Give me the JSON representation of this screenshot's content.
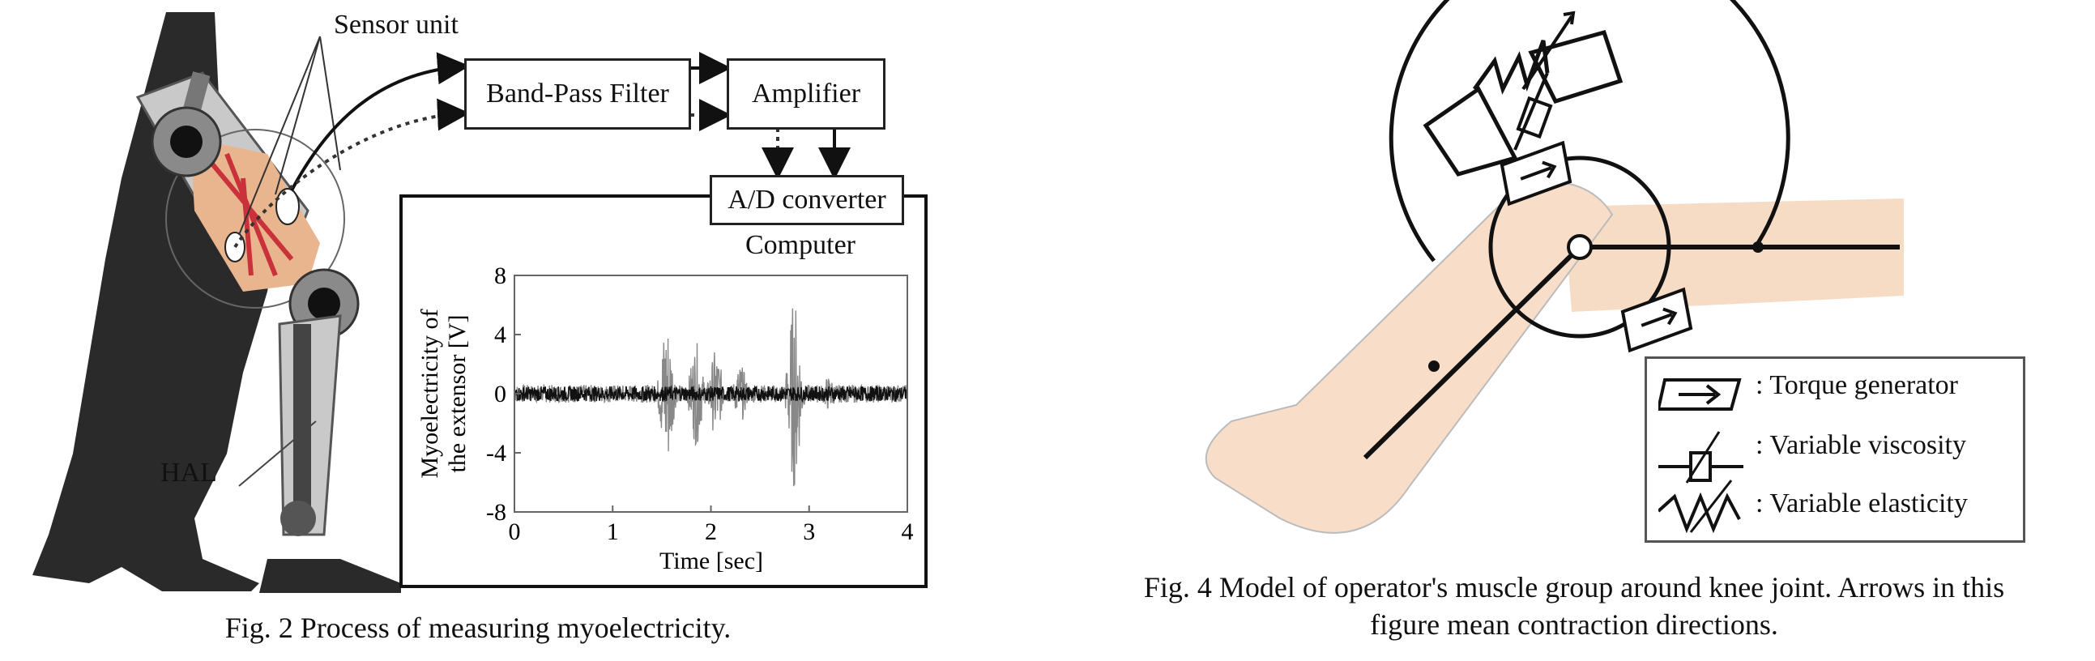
{
  "fig2": {
    "labels": {
      "sensor_unit": "Sensor unit",
      "hal": "HAL",
      "band_pass": "Band-Pass Filter",
      "amplifier": "Amplifier",
      "adc": "A/D converter",
      "computer": "Computer"
    },
    "caption": "Fig. 2 Process of measuring myoelectricity."
  },
  "fig4": {
    "legend": {
      "torque": ": Torque generator",
      "viscosity": ": Variable viscosity",
      "elasticity": ": Variable elasticity"
    },
    "caption_line1": "Fig. 4 Model of operator's muscle group around knee joint. Arrows in this",
    "caption_line2": "figure mean contraction directions."
  },
  "chart_data": {
    "type": "line",
    "xlabel": "Time [sec]",
    "ylabel_line1": "Myoelectricity of",
    "ylabel_line2": "the extensor [V]",
    "xlim": [
      0,
      4
    ],
    "ylim": [
      -8,
      8
    ],
    "x_ticks": [
      "0",
      "1",
      "2",
      "3",
      "4"
    ],
    "y_ticks": [
      "8",
      "4",
      "0",
      "-4",
      "-8"
    ],
    "series": [
      {
        "color": "#111111",
        "bursts": [],
        "baseline_amplitude": 0.5
      },
      {
        "color": "#888888",
        "bursts": [
          {
            "center": 1.55,
            "amplitude": 5.3
          },
          {
            "center": 1.85,
            "amplitude": 3.5
          },
          {
            "center": 2.05,
            "amplitude": 3.0
          },
          {
            "center": 2.3,
            "amplitude": 2.0
          },
          {
            "center": 2.85,
            "amplitude": 6.5
          },
          {
            "center": 3.2,
            "amplitude": 1.2
          }
        ]
      }
    ]
  }
}
